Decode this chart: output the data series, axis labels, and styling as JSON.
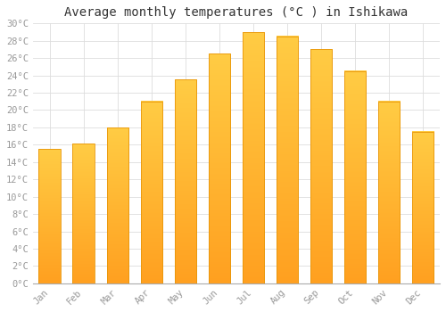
{
  "title": "Average monthly temperatures (°C ) in Ishikawa",
  "months": [
    "Jan",
    "Feb",
    "Mar",
    "Apr",
    "May",
    "Jun",
    "Jul",
    "Aug",
    "Sep",
    "Oct",
    "Nov",
    "Dec"
  ],
  "temperatures": [
    15.5,
    16.1,
    18.0,
    21.0,
    23.5,
    26.5,
    29.0,
    28.5,
    27.0,
    24.5,
    21.0,
    17.5
  ],
  "bar_color_top": "#FFCC44",
  "bar_color_bottom": "#FFA020",
  "bar_edge_color": "#E8960A",
  "ylim": [
    0,
    30
  ],
  "ytick_step": 2,
  "background_color": "#FFFFFF",
  "plot_bg_color": "#FFFFFF",
  "grid_color": "#DDDDDD",
  "title_fontsize": 10,
  "tick_fontsize": 7.5,
  "tick_color": "#999999",
  "font_family": "monospace"
}
